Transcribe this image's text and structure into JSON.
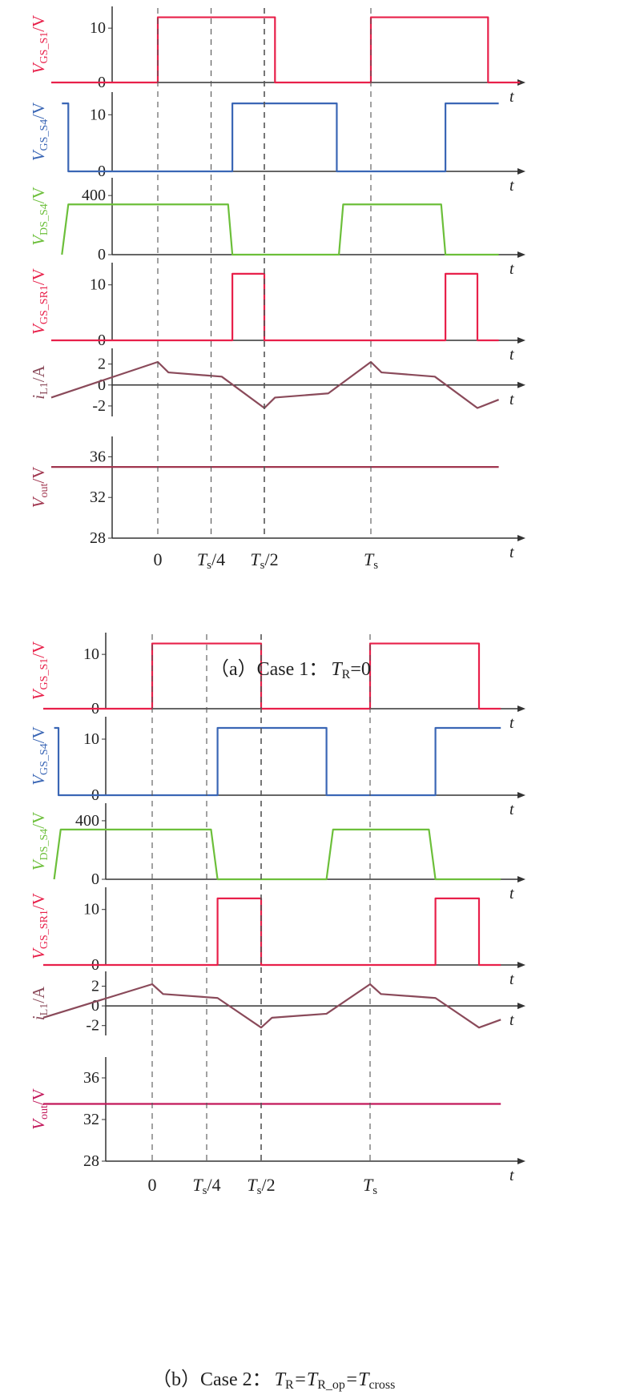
{
  "figure": {
    "panels": [
      {
        "caption": {
          "prefix": "（a）Case 1：",
          "lhs_main": "T",
          "lhs_sub": "R",
          "rhs": "=0"
        },
        "ticks": [
          {
            "main": "0",
            "sub": "",
            "suffix": ""
          },
          {
            "main": "T",
            "sub": "s",
            "suffix": "/4"
          },
          {
            "main": "T",
            "sub": "s",
            "suffix": "/2"
          },
          {
            "main": "T",
            "sub": "s",
            "suffix": ""
          }
        ]
      },
      {
        "caption": {
          "prefix": "（b）Case 2：",
          "lhs_main": "T",
          "lhs_sub": "R",
          "mid1_main": "=T",
          "mid1_sub": "R_op",
          "mid2_main": "=T",
          "mid2_sub": "cross"
        },
        "ticks": [
          {
            "main": "0",
            "sub": "",
            "suffix": ""
          },
          {
            "main": "T",
            "sub": "s",
            "suffix": "/4"
          },
          {
            "main": "T",
            "sub": "s",
            "suffix": "/2"
          },
          {
            "main": "T",
            "sub": "s",
            "suffix": ""
          }
        ]
      }
    ]
  },
  "chart_data": [
    {
      "type": "line",
      "title": "（a）Case 1：TR=0",
      "xlabel": "t",
      "x_ticks": [
        "0",
        "Ts/4",
        "Ts/2",
        "Ts"
      ],
      "series": [
        {
          "name": "V_GS_S1/V",
          "color": "#e8204a",
          "yticks": [
            "10",
            "0"
          ],
          "ylim": [
            0,
            14
          ],
          "x": [
            -0.5,
            0,
            0,
            0.55,
            0.55,
            1,
            1,
            1.55,
            1.55,
            1.7
          ],
          "y": [
            0,
            0,
            12,
            12,
            0,
            0,
            12,
            12,
            0,
            0
          ]
        },
        {
          "name": "V_GS_S4/V",
          "color": "#3a66b5",
          "yticks": [
            "10",
            "0"
          ],
          "ylim": [
            0,
            14
          ],
          "x": [
            -0.45,
            -0.42,
            -0.42,
            0.35,
            0.35,
            0.84,
            0.84,
            1.35,
            1.35,
            1.6
          ],
          "y": [
            12,
            12,
            0,
            0,
            12,
            12,
            0,
            0,
            12,
            12
          ]
        },
        {
          "name": "V_DS_S4/V",
          "color": "#6cbf3a",
          "yticks": [
            "400",
            "0"
          ],
          "ylim": [
            0,
            520
          ],
          "x": [
            -0.45,
            -0.42,
            0.33,
            0.35,
            0.85,
            0.87,
            1.33,
            1.35,
            1.6
          ],
          "y": [
            0,
            340,
            340,
            0,
            0,
            340,
            340,
            0,
            0
          ]
        },
        {
          "name": "V_GS_SR1/V",
          "color": "#e8204a",
          "yticks": [
            "10",
            "0"
          ],
          "ylim": [
            0,
            14
          ],
          "x": [
            -0.5,
            0.35,
            0.35,
            0.5,
            0.5,
            1.35,
            1.35,
            1.5,
            1.5,
            1.6
          ],
          "y": [
            0,
            0,
            12,
            12,
            0,
            0,
            12,
            12,
            0,
            0
          ]
        },
        {
          "name": "i_L1/A",
          "color": "#8a4a5a",
          "yticks": [
            "2",
            "0",
            "-2"
          ],
          "ylim": [
            -3,
            3.5
          ],
          "x": [
            -0.5,
            0,
            0.05,
            0.3,
            0.5,
            0.55,
            0.8,
            1,
            1.05,
            1.3,
            1.5,
            1.6
          ],
          "y": [
            -1.2,
            2.2,
            1.2,
            0.8,
            -2.2,
            -1.2,
            -0.8,
            2.2,
            1.2,
            0.8,
            -2.2,
            -1.4
          ]
        },
        {
          "name": "V_out/V",
          "color": "#a0364f",
          "yticks": [
            "36",
            "32",
            "28"
          ],
          "ylim": [
            28,
            38
          ],
          "x": [
            -0.5,
            1.6
          ],
          "y": [
            35,
            35
          ]
        }
      ]
    },
    {
      "type": "line",
      "title": "（b）Case 2：TR=TR_op=Tcross",
      "xlabel": "t",
      "x_ticks": [
        "0",
        "Ts/4",
        "Ts/2",
        "Ts"
      ],
      "series": [
        {
          "name": "V_GS_S1/V",
          "color": "#e8204a",
          "yticks": [
            "10",
            "0"
          ],
          "ylim": [
            0,
            14
          ],
          "x": [
            -0.5,
            0,
            0,
            0.5,
            0.5,
            1,
            1,
            1.5,
            1.5,
            1.6
          ],
          "y": [
            0,
            0,
            12,
            12,
            0,
            0,
            12,
            12,
            0,
            0
          ]
        },
        {
          "name": "V_GS_S4/V",
          "color": "#3a66b5",
          "yticks": [
            "10",
            "0"
          ],
          "ylim": [
            0,
            14
          ],
          "x": [
            -0.45,
            -0.43,
            -0.43,
            0.3,
            0.3,
            0.8,
            0.8,
            1.3,
            1.3,
            1.6
          ],
          "y": [
            12,
            12,
            0,
            0,
            12,
            12,
            0,
            0,
            12,
            12
          ]
        },
        {
          "name": "V_DS_S4/V",
          "color": "#6cbf3a",
          "yticks": [
            "400",
            "0"
          ],
          "ylim": [
            0,
            520
          ],
          "x": [
            -0.45,
            -0.42,
            0.27,
            0.3,
            0.8,
            0.83,
            1.27,
            1.3,
            1.6
          ],
          "y": [
            0,
            340,
            340,
            0,
            0,
            340,
            340,
            0,
            0
          ]
        },
        {
          "name": "V_GS_SR1/V",
          "color": "#e8204a",
          "yticks": [
            "10",
            "0"
          ],
          "ylim": [
            0,
            14
          ],
          "x": [
            -0.5,
            0.3,
            0.3,
            0.5,
            0.5,
            1.3,
            1.3,
            1.5,
            1.5,
            1.6
          ],
          "y": [
            0,
            0,
            12,
            12,
            0,
            0,
            12,
            12,
            0,
            0
          ]
        },
        {
          "name": "i_L1/A",
          "color": "#8a4a5a",
          "yticks": [
            "2",
            "0",
            "-2"
          ],
          "ylim": [
            -3,
            3.5
          ],
          "x": [
            -0.5,
            0,
            0.05,
            0.3,
            0.5,
            0.55,
            0.8,
            1,
            1.05,
            1.3,
            1.5,
            1.6
          ],
          "y": [
            -1.2,
            2.2,
            1.2,
            0.8,
            -2.2,
            -1.2,
            -0.8,
            2.2,
            1.2,
            0.8,
            -2.2,
            -1.4
          ]
        },
        {
          "name": "V_out/V",
          "color": "#c2185b",
          "yticks": [
            "36",
            "32",
            "28"
          ],
          "ylim": [
            28,
            38
          ],
          "x": [
            -0.5,
            1.6
          ],
          "y": [
            33.5,
            33.5
          ]
        }
      ]
    }
  ]
}
